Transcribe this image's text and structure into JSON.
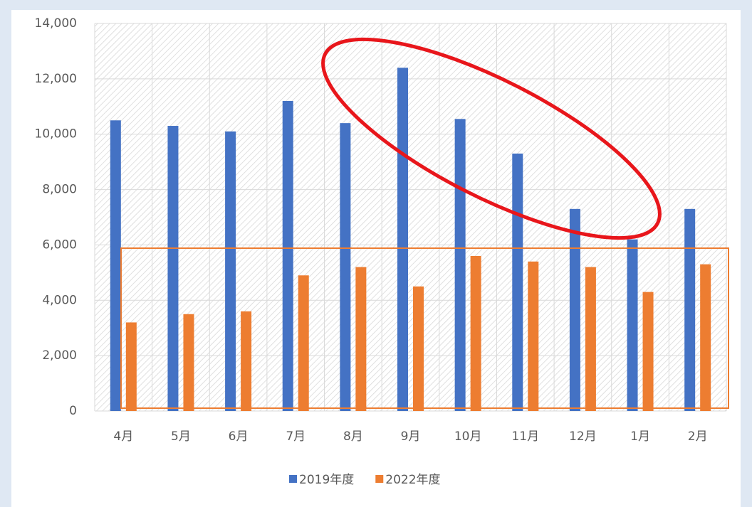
{
  "chart_data": {
    "type": "bar",
    "categories": [
      "4月",
      "5月",
      "6月",
      "7月",
      "8月",
      "9月",
      "10月",
      "11月",
      "12月",
      "1月",
      "2月"
    ],
    "series": [
      {
        "name": "2019年度",
        "color": "#4472c4",
        "values": [
          10500,
          10300,
          10100,
          11200,
          10400,
          12400,
          10550,
          9300,
          7300,
          6200,
          7300
        ]
      },
      {
        "name": "2022年度",
        "color": "#ed7d31",
        "values": [
          3200,
          3500,
          3600,
          4900,
          5200,
          4500,
          5600,
          5400,
          5200,
          4300,
          5300
        ]
      }
    ],
    "ylim": [
      0,
      14000
    ],
    "yticks": [
      0,
      {
        "value": 2000,
        "label": "2,000"
      },
      {
        "value": 4000,
        "label": "4,000"
      },
      {
        "value": 6000,
        "label": "6,000"
      },
      {
        "value": 8000,
        "label": "8,000"
      },
      {
        "value": 10000,
        "label": "10,000"
      },
      {
        "value": 12000,
        "label": "12,000"
      },
      {
        "value": 14000,
        "label": "14,000"
      }
    ],
    "grid": true,
    "legend": "bottom"
  }
}
